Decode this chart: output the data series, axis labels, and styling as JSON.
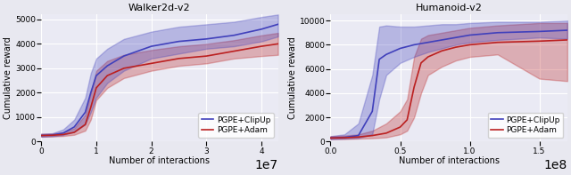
{
  "fig_width": 6.4,
  "fig_height": 1.97,
  "dpi": 100,
  "bg_color": "#e8e8f0",
  "plot_bg_color": "#eaeaf4",
  "left_title": "Walker2d-v2",
  "right_title": "Humanoid-v2",
  "xlabel": "Number of interactions",
  "ylabel": "Cumulative reward",
  "blue_color": "#4040bb",
  "red_color": "#bb2020",
  "blue_fill_alpha": 0.3,
  "red_fill_alpha": 0.3,
  "legend_labels": [
    "PGPE+ClipUp",
    "PGPE+Adam"
  ],
  "left": {
    "xlim": [
      0,
      43000000.0
    ],
    "ylim": [
      0,
      5200
    ],
    "xticks": [
      0,
      10000000.0,
      20000000.0,
      30000000.0,
      40000000.0
    ],
    "yticks": [
      0,
      1000,
      2000,
      3000,
      4000,
      5000
    ],
    "blue_mean": [
      [
        0,
        250
      ],
      [
        2000000.0,
        270
      ],
      [
        4000000.0,
        350
      ],
      [
        6000000.0,
        600
      ],
      [
        8000000.0,
        1200
      ],
      [
        9000000.0,
        2000
      ],
      [
        10000000.0,
        2700
      ],
      [
        12000000.0,
        3100
      ],
      [
        15000000.0,
        3500
      ],
      [
        20000000.0,
        3900
      ],
      [
        25000000.0,
        4100
      ],
      [
        30000000.0,
        4200
      ],
      [
        35000000.0,
        4350
      ],
      [
        40000000.0,
        4600
      ],
      [
        43000000.0,
        4800
      ]
    ],
    "blue_low": [
      [
        0,
        200
      ],
      [
        2000000.0,
        220
      ],
      [
        4000000.0,
        270
      ],
      [
        6000000.0,
        400
      ],
      [
        8000000.0,
        700
      ],
      [
        9000000.0,
        1200
      ],
      [
        10000000.0,
        1800
      ],
      [
        12000000.0,
        2400
      ],
      [
        15000000.0,
        2900
      ],
      [
        20000000.0,
        3400
      ],
      [
        25000000.0,
        3600
      ],
      [
        30000000.0,
        3800
      ],
      [
        35000000.0,
        3900
      ],
      [
        40000000.0,
        4100
      ],
      [
        43000000.0,
        4300
      ]
    ],
    "blue_high": [
      [
        0,
        320
      ],
      [
        2000000.0,
        340
      ],
      [
        4000000.0,
        500
      ],
      [
        6000000.0,
        900
      ],
      [
        8000000.0,
        1800
      ],
      [
        9000000.0,
        2800
      ],
      [
        10000000.0,
        3400
      ],
      [
        12000000.0,
        3800
      ],
      [
        15000000.0,
        4200
      ],
      [
        20000000.0,
        4500
      ],
      [
        25000000.0,
        4700
      ],
      [
        30000000.0,
        4800
      ],
      [
        35000000.0,
        4900
      ],
      [
        40000000.0,
        5100
      ],
      [
        43000000.0,
        5200
      ]
    ],
    "red_mean": [
      [
        0,
        250
      ],
      [
        2000000.0,
        260
      ],
      [
        4000000.0,
        290
      ],
      [
        6000000.0,
        380
      ],
      [
        8000000.0,
        700
      ],
      [
        9000000.0,
        1400
      ],
      [
        10000000.0,
        2200
      ],
      [
        12000000.0,
        2700
      ],
      [
        15000000.0,
        3000
      ],
      [
        20000000.0,
        3200
      ],
      [
        25000000.0,
        3400
      ],
      [
        30000000.0,
        3500
      ],
      [
        35000000.0,
        3700
      ],
      [
        40000000.0,
        3900
      ],
      [
        43000000.0,
        4000
      ]
    ],
    "red_low": [
      [
        0,
        200
      ],
      [
        2000000.0,
        210
      ],
      [
        4000000.0,
        230
      ],
      [
        6000000.0,
        280
      ],
      [
        8000000.0,
        450
      ],
      [
        9000000.0,
        900
      ],
      [
        10000000.0,
        1700
      ],
      [
        12000000.0,
        2200
      ],
      [
        15000000.0,
        2600
      ],
      [
        20000000.0,
        2900
      ],
      [
        25000000.0,
        3100
      ],
      [
        30000000.0,
        3200
      ],
      [
        35000000.0,
        3400
      ],
      [
        40000000.0,
        3500
      ],
      [
        43000000.0,
        3550
      ]
    ],
    "red_high": [
      [
        0,
        320
      ],
      [
        2000000.0,
        330
      ],
      [
        4000000.0,
        380
      ],
      [
        6000000.0,
        550
      ],
      [
        8000000.0,
        1100
      ],
      [
        9000000.0,
        2000
      ],
      [
        10000000.0,
        2900
      ],
      [
        12000000.0,
        3300
      ],
      [
        15000000.0,
        3550
      ],
      [
        20000000.0,
        3750
      ],
      [
        25000000.0,
        3900
      ],
      [
        30000000.0,
        4000
      ],
      [
        35000000.0,
        4150
      ],
      [
        40000000.0,
        4350
      ],
      [
        43000000.0,
        4450
      ]
    ]
  },
  "right": {
    "xlim": [
      0,
      170000000.0
    ],
    "ylim": [
      0,
      10500
    ],
    "xticks": [
      0.0,
      50000000.0,
      100000000.0,
      150000000.0
    ],
    "yticks": [
      0,
      2000,
      4000,
      6000,
      8000,
      10000
    ],
    "blue_mean": [
      [
        0,
        300
      ],
      [
        10000000.0,
        350
      ],
      [
        20000000.0,
        500
      ],
      [
        30000000.0,
        2500
      ],
      [
        35000000.0,
        6800
      ],
      [
        40000000.0,
        7200
      ],
      [
        50000000.0,
        7700
      ],
      [
        60000000.0,
        8000
      ],
      [
        70000000.0,
        8200
      ],
      [
        80000000.0,
        8400
      ],
      [
        90000000.0,
        8600
      ],
      [
        100000000.0,
        8800
      ],
      [
        120000000.0,
        9000
      ],
      [
        150000000.0,
        9100
      ],
      [
        170000000.0,
        9200
      ]
    ],
    "blue_low": [
      [
        0,
        200
      ],
      [
        10000000.0,
        250
      ],
      [
        20000000.0,
        300
      ],
      [
        30000000.0,
        600
      ],
      [
        35000000.0,
        3500
      ],
      [
        40000000.0,
        5500
      ],
      [
        50000000.0,
        6500
      ],
      [
        60000000.0,
        7000
      ],
      [
        70000000.0,
        7400
      ],
      [
        80000000.0,
        7700
      ],
      [
        90000000.0,
        8000
      ],
      [
        100000000.0,
        8200
      ],
      [
        120000000.0,
        8400
      ],
      [
        150000000.0,
        8600
      ],
      [
        170000000.0,
        8500
      ]
    ],
    "blue_high": [
      [
        0,
        450
      ],
      [
        10000000.0,
        600
      ],
      [
        20000000.0,
        1500
      ],
      [
        30000000.0,
        5500
      ],
      [
        35000000.0,
        9500
      ],
      [
        40000000.0,
        9600
      ],
      [
        50000000.0,
        9500
      ],
      [
        60000000.0,
        9500
      ],
      [
        70000000.0,
        9600
      ],
      [
        80000000.0,
        9700
      ],
      [
        90000000.0,
        9700
      ],
      [
        100000000.0,
        9800
      ],
      [
        120000000.0,
        9900
      ],
      [
        150000000.0,
        9900
      ],
      [
        170000000.0,
        10000
      ]
    ],
    "red_mean": [
      [
        0,
        300
      ],
      [
        10000000.0,
        320
      ],
      [
        20000000.0,
        380
      ],
      [
        30000000.0,
        500
      ],
      [
        40000000.0,
        700
      ],
      [
        50000000.0,
        1200
      ],
      [
        55000000.0,
        1800
      ],
      [
        60000000.0,
        4500
      ],
      [
        65000000.0,
        6500
      ],
      [
        70000000.0,
        7000
      ],
      [
        80000000.0,
        7500
      ],
      [
        90000000.0,
        7800
      ],
      [
        100000000.0,
        8000
      ],
      [
        120000000.0,
        8200
      ],
      [
        150000000.0,
        8300
      ],
      [
        170000000.0,
        8400
      ]
    ],
    "red_low": [
      [
        0,
        200
      ],
      [
        10000000.0,
        210
      ],
      [
        20000000.0,
        250
      ],
      [
        30000000.0,
        280
      ],
      [
        40000000.0,
        350
      ],
      [
        50000000.0,
        600
      ],
      [
        55000000.0,
        900
      ],
      [
        60000000.0,
        2000
      ],
      [
        65000000.0,
        4000
      ],
      [
        70000000.0,
        5500
      ],
      [
        80000000.0,
        6200
      ],
      [
        90000000.0,
        6700
      ],
      [
        100000000.0,
        7000
      ],
      [
        120000000.0,
        7200
      ],
      [
        150000000.0,
        5200
      ],
      [
        170000000.0,
        5000
      ]
    ],
    "red_high": [
      [
        0,
        450
      ],
      [
        10000000.0,
        500
      ],
      [
        20000000.0,
        600
      ],
      [
        30000000.0,
        900
      ],
      [
        40000000.0,
        1500
      ],
      [
        50000000.0,
        2500
      ],
      [
        55000000.0,
        3500
      ],
      [
        60000000.0,
        7000
      ],
      [
        65000000.0,
        8500
      ],
      [
        70000000.0,
        8800
      ],
      [
        80000000.0,
        9000
      ],
      [
        90000000.0,
        9200
      ],
      [
        100000000.0,
        9400
      ],
      [
        120000000.0,
        9600
      ],
      [
        150000000.0,
        9800
      ],
      [
        170000000.0,
        9800
      ]
    ]
  }
}
